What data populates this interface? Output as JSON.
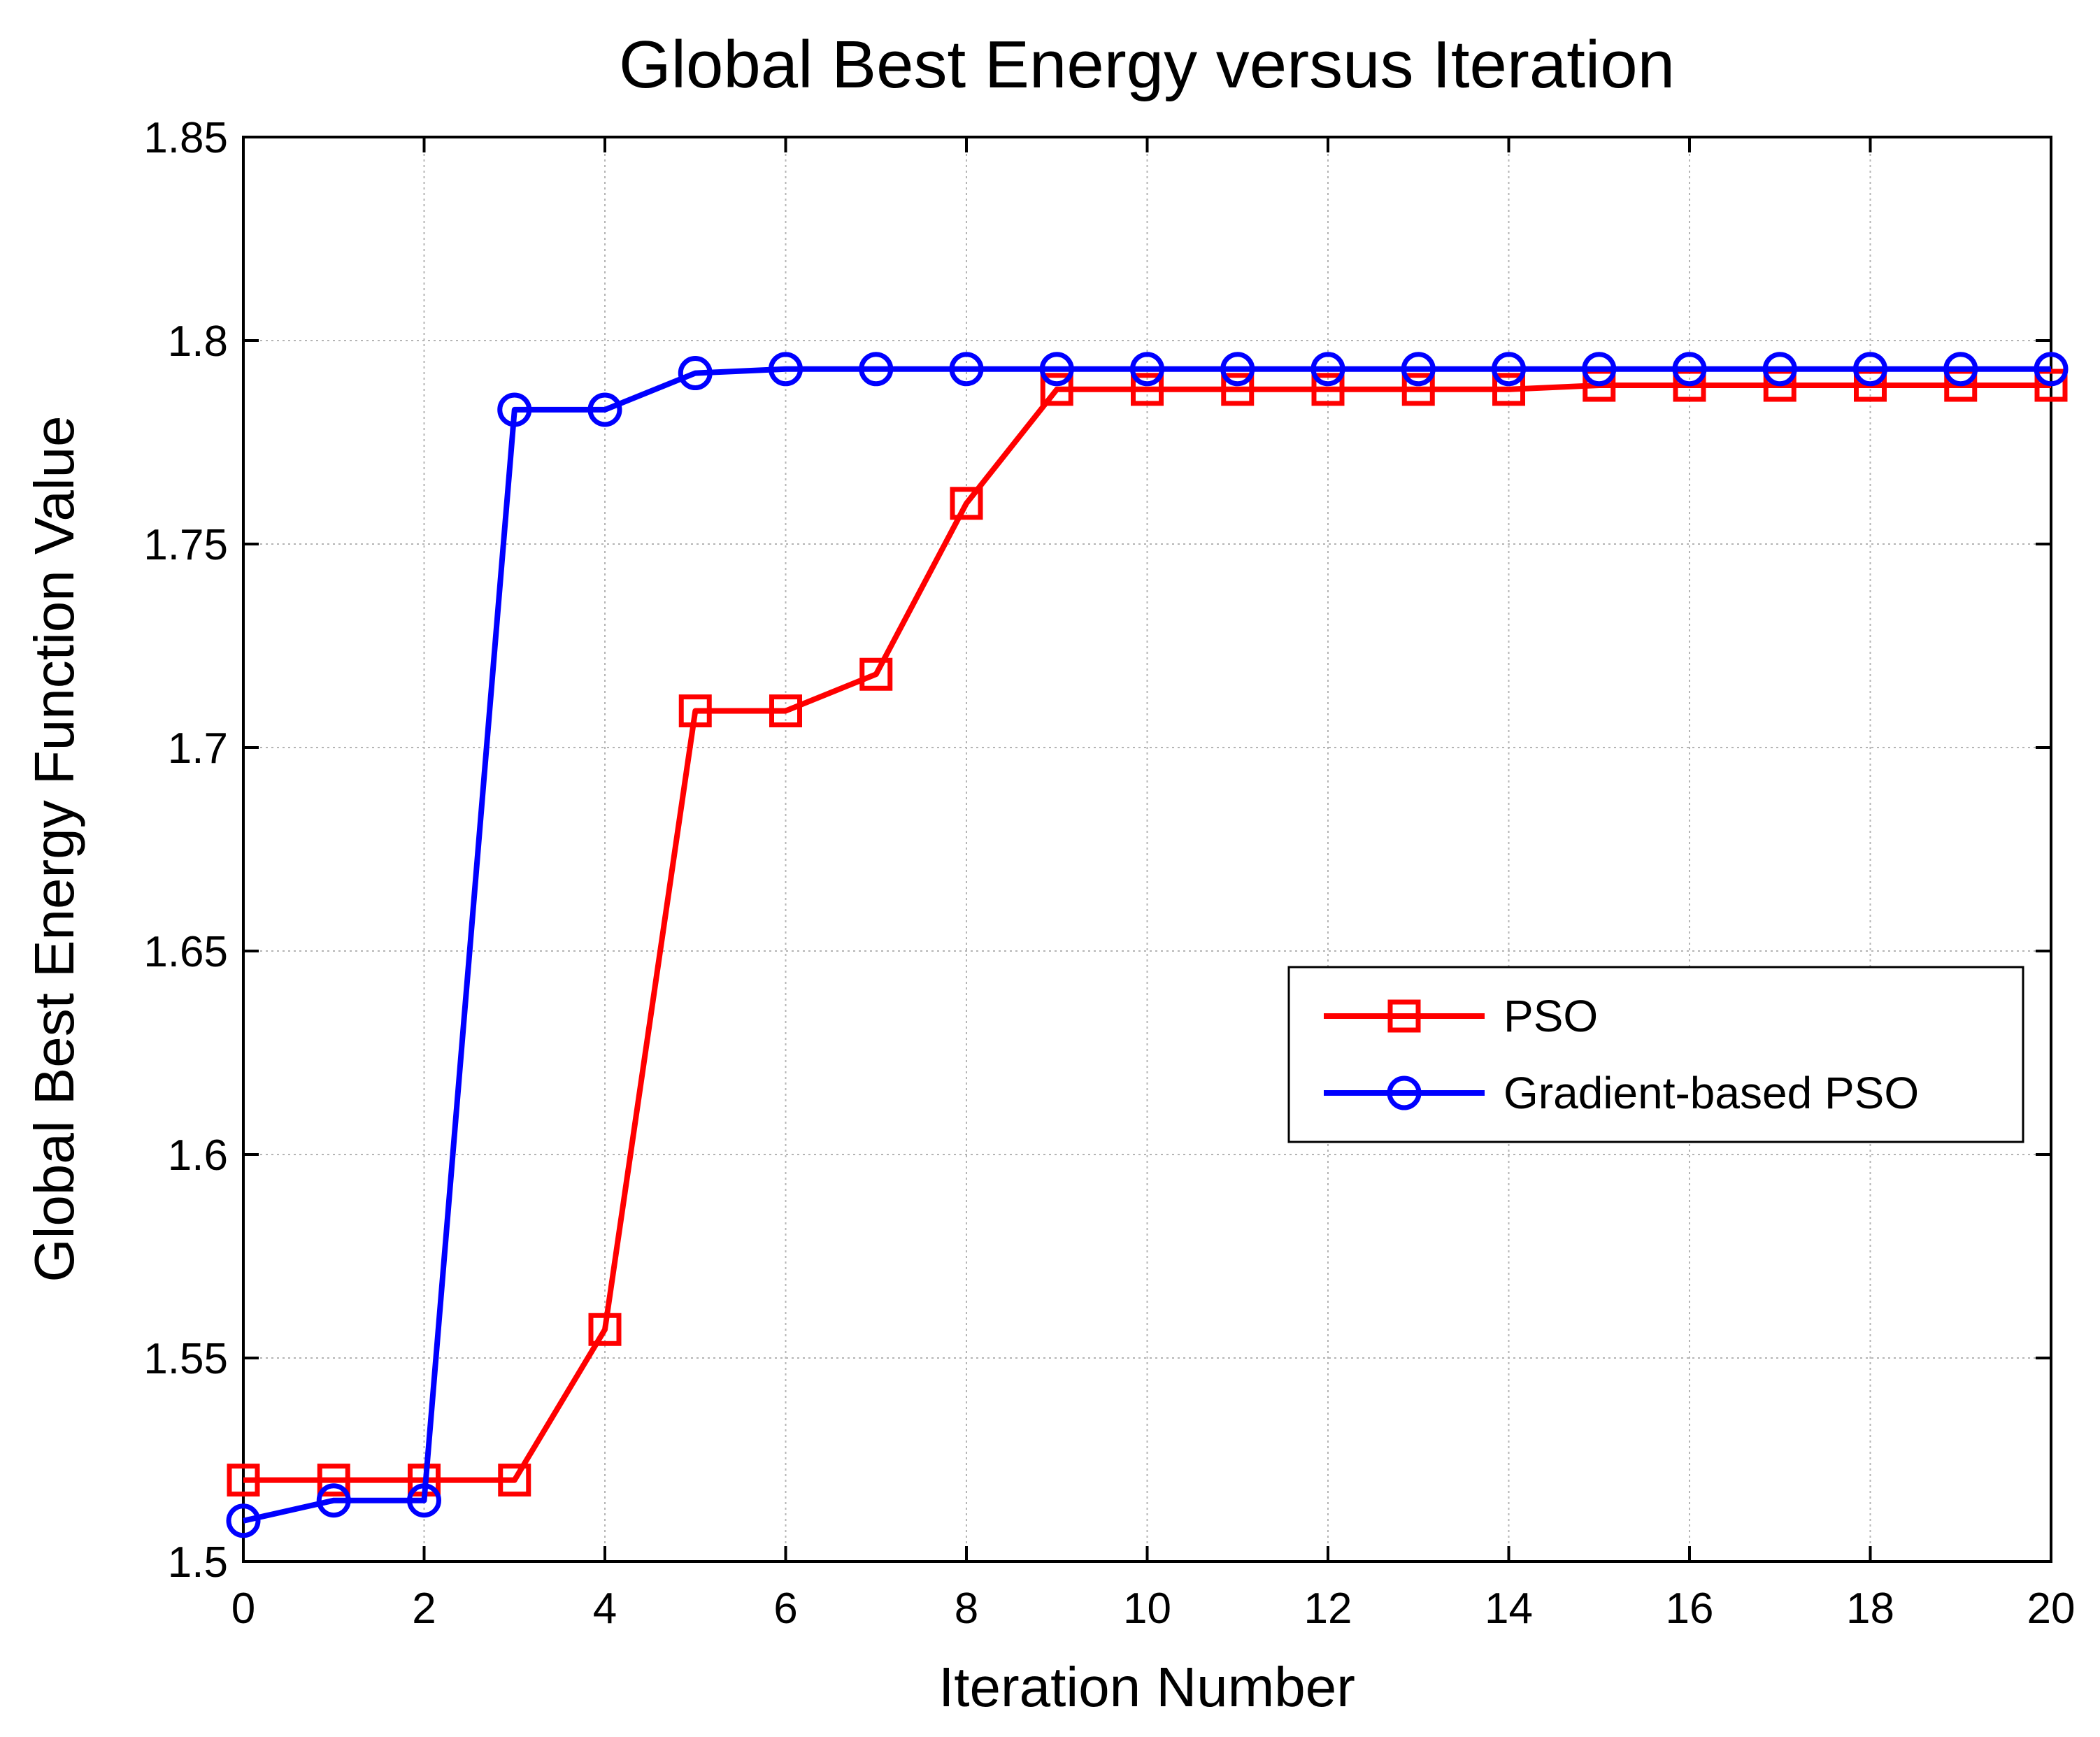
{
  "chart_data": {
    "type": "line",
    "title": "Global Best Energy versus Iteration",
    "xlabel": "Iteration Number",
    "ylabel": "Global Best Energy Function Value",
    "xlim": [
      0,
      20
    ],
    "ylim": [
      1.5,
      1.85
    ],
    "xticks": [
      0,
      2,
      4,
      6,
      8,
      10,
      12,
      14,
      16,
      18,
      20
    ],
    "xtick_labels": [
      "0",
      "2",
      "4",
      "6",
      "8",
      "10",
      "12",
      "14",
      "16",
      "18",
      "20"
    ],
    "yticks": [
      1.5,
      1.55,
      1.6,
      1.65,
      1.7,
      1.75,
      1.8,
      1.85
    ],
    "ytick_labels": [
      "1.5",
      "1.55",
      "1.6",
      "1.65",
      "1.7",
      "1.75",
      "1.8",
      "1.85"
    ],
    "grid": true,
    "legend_position": "center-right",
    "x": [
      0,
      1,
      2,
      3,
      4,
      5,
      6,
      7,
      8,
      9,
      10,
      11,
      12,
      13,
      14,
      15,
      16,
      17,
      18,
      19,
      20
    ],
    "series": [
      {
        "name": "PSO",
        "color": "#ff0000",
        "marker": "square",
        "values": [
          1.52,
          1.52,
          1.52,
          1.52,
          1.557,
          1.709,
          1.709,
          1.718,
          1.76,
          1.788,
          1.788,
          1.788,
          1.788,
          1.788,
          1.788,
          1.789,
          1.789,
          1.789,
          1.789,
          1.789,
          1.789
        ]
      },
      {
        "name": "Gradient-based PSO",
        "color": "#0000ff",
        "marker": "circle",
        "values": [
          1.51,
          1.515,
          1.515,
          1.783,
          1.783,
          1.792,
          1.793,
          1.793,
          1.793,
          1.793,
          1.793,
          1.793,
          1.793,
          1.793,
          1.793,
          1.793,
          1.793,
          1.793,
          1.793,
          1.793,
          1.793
        ]
      }
    ]
  }
}
